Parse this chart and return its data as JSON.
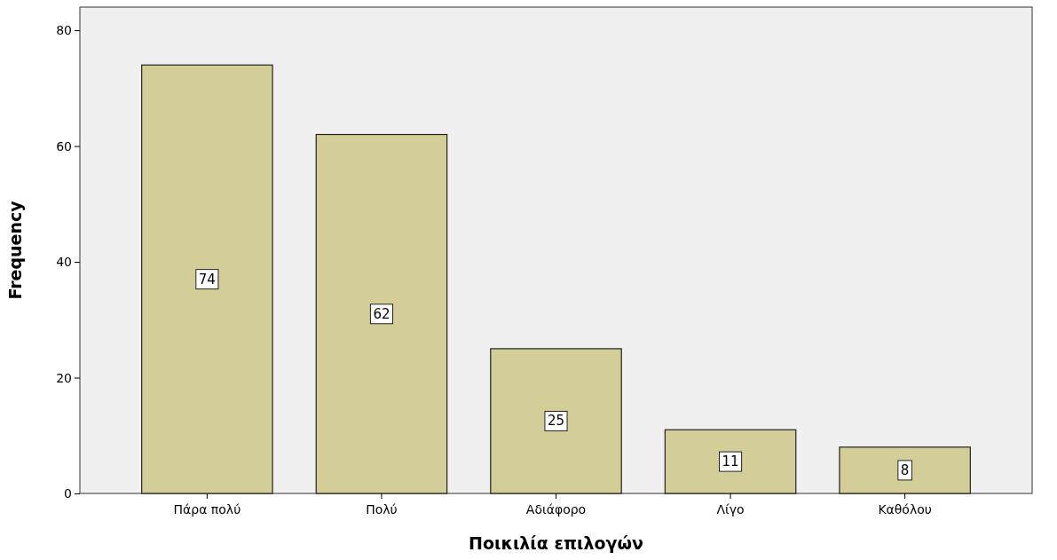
{
  "chart_data": {
    "type": "bar",
    "xlabel": "Ποικιλία επιλογών",
    "ylabel": "Frequency",
    "categories": [
      "Πάρα πολύ",
      "Πολύ",
      "Αδιάφορο",
      "Λίγο",
      "Καθόλου"
    ],
    "values": [
      74,
      62,
      25,
      11,
      8
    ],
    "color": "#d3ce97",
    "ylim": [
      0,
      84
    ],
    "yticks": [
      0,
      20,
      40,
      60,
      80
    ],
    "grid": false,
    "data_labels": true
  }
}
